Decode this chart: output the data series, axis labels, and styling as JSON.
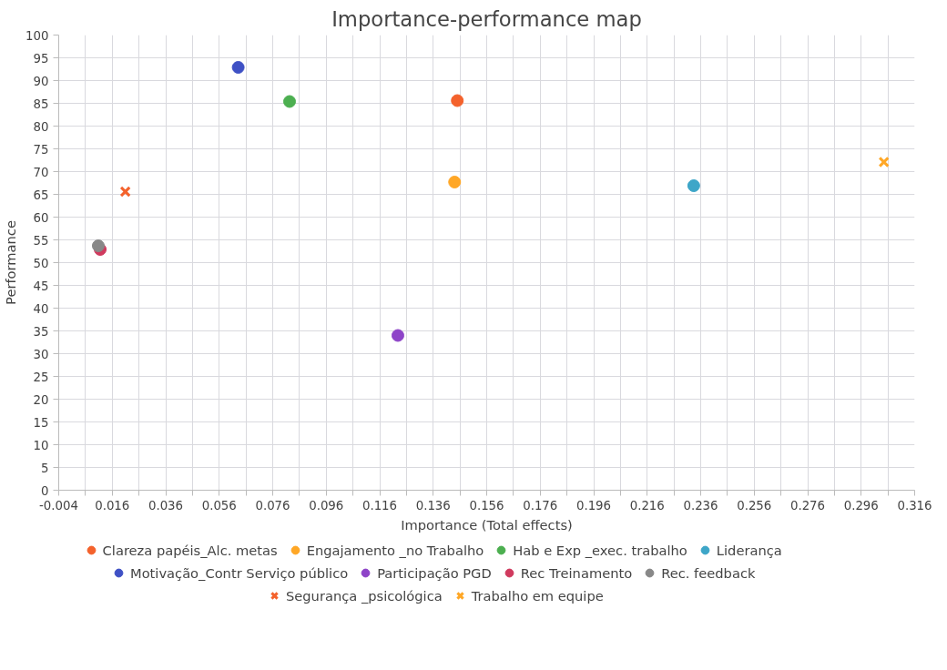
{
  "chart_data": {
    "type": "scatter",
    "title": "Importance-performance map",
    "xlabel": "Importance (Total effects)",
    "ylabel": "Performance",
    "xlim": [
      -0.004,
      0.316
    ],
    "xticks": [
      -0.004,
      {
        "value": 0.006,
        "label": null
      },
      0.016,
      {
        "value": 0.026,
        "label": null
      },
      0.036,
      {
        "value": 0.046,
        "label": null
      },
      0.056,
      {
        "value": 0.066,
        "label": null
      },
      0.076,
      {
        "value": 0.086,
        "label": null
      },
      0.096,
      {
        "value": 0.106,
        "label": null
      },
      0.116,
      {
        "value": 0.126,
        "label": null
      },
      0.136,
      {
        "value": 0.146,
        "label": null
      },
      0.156,
      {
        "value": 0.166,
        "label": null
      },
      0.176,
      {
        "value": 0.186,
        "label": null
      },
      0.196,
      {
        "value": 0.206,
        "label": null
      },
      0.216,
      {
        "value": 0.226,
        "label": null
      },
      0.236,
      {
        "value": 0.246,
        "label": null
      },
      0.256,
      {
        "value": 0.266,
        "label": null
      },
      0.276,
      {
        "value": 0.286,
        "label": null
      },
      0.296,
      {
        "value": 0.306,
        "label": null
      },
      0.316
    ],
    "ylim": [
      0,
      100
    ],
    "yticks": [
      0,
      5,
      10,
      15,
      20,
      25,
      30,
      35,
      40,
      45,
      50,
      55,
      60,
      65,
      70,
      75,
      80,
      85,
      90,
      95,
      100
    ],
    "grid": true,
    "legend": "bottom",
    "series": [
      {
        "name": "Clareza papéis_Alc. metas",
        "color": "#f4622c",
        "marker": "circle",
        "x": [
          0.145
        ],
        "values": [
          85.6
        ]
      },
      {
        "name": "Engajamento _no Trabalho",
        "color": "#ffa726",
        "marker": "circle",
        "x": [
          0.144
        ],
        "values": [
          67.7
        ]
      },
      {
        "name": "Hab e Exp _exec. trabalho",
        "color": "#4caf50",
        "marker": "circle",
        "x": [
          0.0823
        ],
        "values": [
          85.4
        ]
      },
      {
        "name": "Liderança",
        "color": "#3ea6c8",
        "marker": "circle",
        "x": [
          0.2334
        ],
        "values": [
          66.9
        ]
      },
      {
        "name": "Motivação_Contr Serviço público",
        "color": "#3f51c5",
        "marker": "circle",
        "x": [
          0.0631
        ],
        "values": [
          92.9
        ]
      },
      {
        "name": "Participação PGD",
        "color": "#8e44c8",
        "marker": "circle",
        "x": [
          0.1228
        ],
        "values": [
          34.0
        ]
      },
      {
        "name": "Rec Treinamento",
        "color": "#d03a5e",
        "marker": "circle",
        "x": [
          0.0115
        ],
        "values": [
          52.9
        ]
      },
      {
        "name": "Rec. feedback",
        "color": "#888888",
        "marker": "circle",
        "x": [
          0.0108
        ],
        "values": [
          53.7
        ]
      },
      {
        "name": "Segurança _psicológica",
        "color": "#f4622c",
        "marker": "cross",
        "x": [
          0.0209
        ],
        "values": [
          65.6
        ]
      },
      {
        "name": "Trabalho em equipe",
        "color": "#ffa726",
        "marker": "cross",
        "x": [
          0.3045
        ],
        "values": [
          72.1
        ]
      }
    ]
  }
}
